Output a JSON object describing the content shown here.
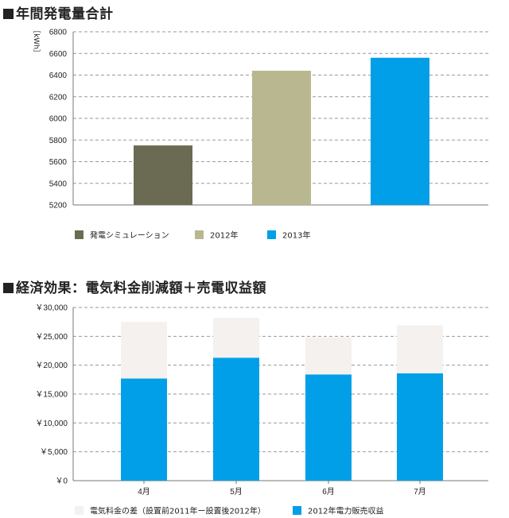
{
  "chart_data": [
    {
      "type": "bar",
      "title": "■年間発電量合計",
      "ylabel": "［kWh］",
      "categories": [
        "発電シミュレーション",
        "2012年",
        "2013年"
      ],
      "values": [
        5750,
        6440,
        6560
      ],
      "colors": [
        "#6b6b53",
        "#b8b78f",
        "#009fe8"
      ],
      "ylim": [
        5200,
        6800
      ],
      "yticks": [
        "5200",
        "5400",
        "5600",
        "5800",
        "6000",
        "6200",
        "6400",
        "6600",
        "6800"
      ],
      "grid": true,
      "legend": [
        {
          "label": "発電シミュレーション",
          "color": "#6b6b53"
        },
        {
          "label": "2012年",
          "color": "#b8b78f"
        },
        {
          "label": "2013年",
          "color": "#009fe8"
        }
      ],
      "legend_position": "bottom"
    },
    {
      "type": "bar",
      "stacked": true,
      "title": "■経済効果：電気料金削減額＋売電収益額",
      "categories": [
        "4月",
        "5月",
        "6月",
        "7月"
      ],
      "series": [
        {
          "name": "2012年電力販売収益",
          "values": [
            17700,
            21300,
            18400,
            18600
          ],
          "color": "#009fe8"
        },
        {
          "name": "電気料金の差（設置前2011年ー設置後2012年）",
          "values": [
            9800,
            6900,
            6400,
            8300
          ],
          "color": "#f4f1ee"
        }
      ],
      "ylim": [
        0,
        30000
      ],
      "yticks": [
        "￥0",
        "￥5,000",
        "￥10,000",
        "￥15,000",
        "￥20,000",
        "￥25,000",
        "￥30,000"
      ],
      "grid": true,
      "legend": [
        {
          "label": "電気料金の差（設置前2011年ー設置後2012年）",
          "color": "#f4f1ee"
        },
        {
          "label": "2012年電力販売収益",
          "color": "#009fe8"
        }
      ],
      "legend_position": "bottom"
    }
  ]
}
